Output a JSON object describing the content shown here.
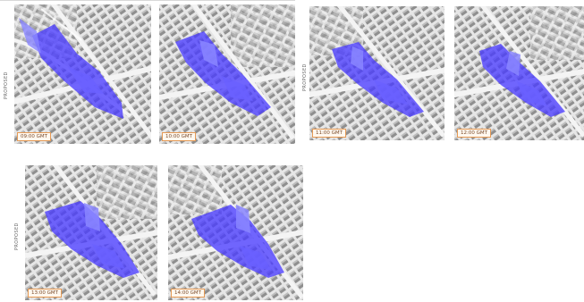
{
  "labels": {
    "proposed_a": "PROPOSED",
    "proposed_b": "PROPOSED",
    "proposed_c": "PROPOSED"
  },
  "panels": [
    {
      "time": "09:00 GMT"
    },
    {
      "time": "10:00 GMT"
    },
    {
      "time": "11:00 GMT"
    },
    {
      "time": "12:00 GMT"
    },
    {
      "time": "13:00 GMT"
    },
    {
      "time": "14:00 GMT"
    }
  ],
  "colors": {
    "shadow_fill": "#4a3cff",
    "shadow_light": "#8a86ff",
    "building": "#9a9a9a",
    "street": "#f4f4f4",
    "badge_border": "#e59a55"
  }
}
